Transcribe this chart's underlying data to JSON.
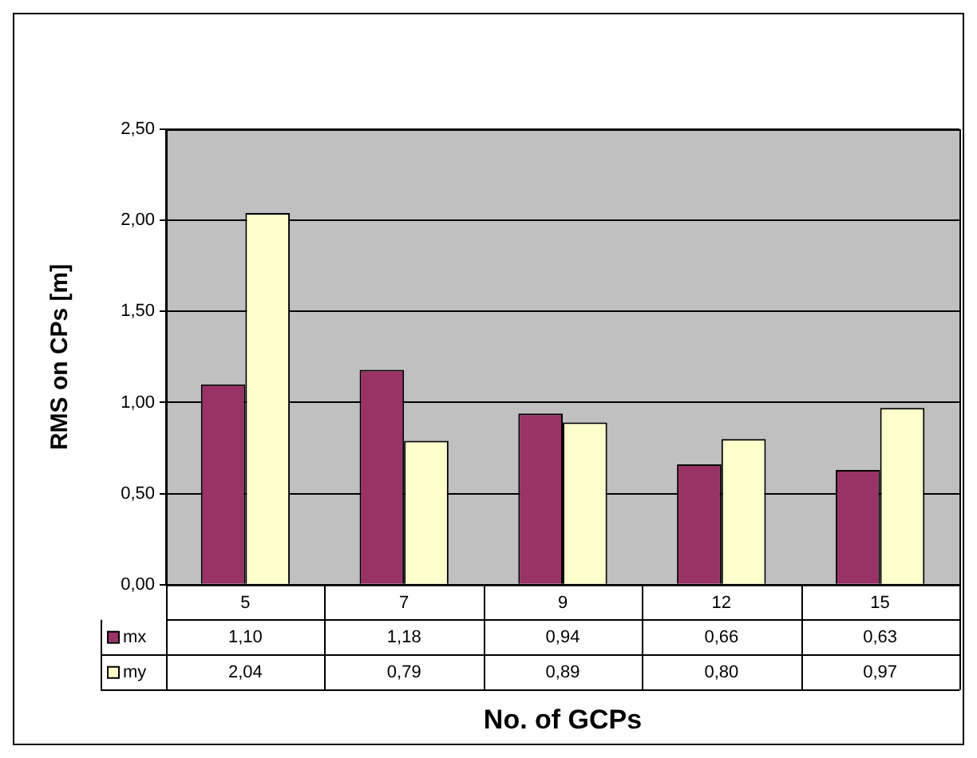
{
  "chart_data": {
    "type": "bar",
    "xlabel": "No. of GCPs",
    "ylabel": "RMS on CPs [m]",
    "categories": [
      "5",
      "7",
      "9",
      "12",
      "15"
    ],
    "series": [
      {
        "name": "mx",
        "color": "#993366",
        "values": [
          1.1,
          1.18,
          0.94,
          0.66,
          0.63
        ],
        "value_labels": [
          "1,10",
          "1,18",
          "0,94",
          "0,66",
          "0,63"
        ]
      },
      {
        "name": "my",
        "color": "#ffffcc",
        "values": [
          2.04,
          0.79,
          0.89,
          0.8,
          0.97
        ],
        "value_labels": [
          "2,04",
          "0,79",
          "0,89",
          "0,80",
          "0,97"
        ]
      }
    ],
    "ylim": [
      0,
      2.5
    ],
    "yticks": [
      {
        "value": 0,
        "label": "0,00"
      },
      {
        "value": 0.5,
        "label": "0,50"
      },
      {
        "value": 1,
        "label": "1,00"
      },
      {
        "value": 1.5,
        "label": "1,50"
      },
      {
        "value": 2,
        "label": "2,00"
      },
      {
        "value": 2.5,
        "label": "2,50"
      }
    ],
    "grid": "y",
    "legend": "bottom"
  }
}
